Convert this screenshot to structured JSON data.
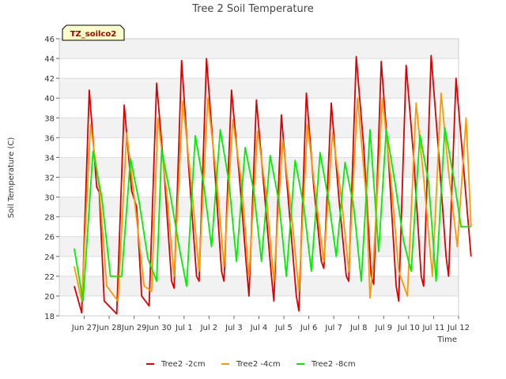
{
  "chart_data": {
    "type": "line",
    "title": "Tree 2 Soil Temperature",
    "xlabel": "Time",
    "ylabel": "Soil Temperature (C)",
    "ylim": [
      18,
      46
    ],
    "xlim": [
      0,
      16
    ],
    "yticks": [
      18,
      20,
      22,
      24,
      26,
      28,
      30,
      32,
      34,
      36,
      38,
      40,
      42,
      44,
      46
    ],
    "xticks": [
      "Jun 27",
      "Jun 28",
      "Jun 29",
      "Jun 30",
      "Jul 1",
      "Jul 2",
      "Jul 3",
      "Jul 4",
      "Jul 5",
      "Jul 6",
      "Jul 7",
      "Jul 8",
      "Jul 9",
      "Jul 10",
      "Jul 11",
      "Jul 12"
    ],
    "grid": "horizontal bands",
    "legend_position": "bottom",
    "annotation": "TZ_soilco2",
    "series": [
      {
        "name": "Tree2 -2cm",
        "color": "#dd0000",
        "x": [
          0.6,
          0.9,
          1.2,
          1.5,
          1.6,
          1.8,
          2.3,
          2.6,
          2.9,
          3.1,
          3.3,
          3.6,
          3.9,
          4.2,
          4.5,
          4.6,
          4.9,
          5.2,
          5.5,
          5.6,
          5.9,
          6.2,
          6.5,
          6.6,
          6.9,
          7.2,
          7.5,
          7.6,
          7.9,
          8.2,
          8.5,
          8.6,
          8.9,
          9.2,
          9.5,
          9.6,
          9.9,
          10.2,
          10.5,
          10.6,
          10.9,
          11.2,
          11.5,
          11.6,
          11.9,
          12.2,
          12.5,
          12.6,
          12.9,
          13.2,
          13.5,
          13.6,
          13.9,
          14.2,
          14.5,
          14.6,
          14.9,
          15.2,
          15.5,
          15.6,
          15.9,
          16.2,
          16.5
        ],
        "y": [
          21.0,
          18.3,
          40.8,
          31.0,
          30.5,
          19.5,
          18.2,
          39.3,
          30.6,
          29.0,
          20.0,
          19.0,
          41.5,
          32.5,
          21.5,
          20.8,
          43.8,
          32.5,
          22.0,
          21.5,
          44.0,
          33.8,
          22.5,
          21.5,
          40.8,
          32.5,
          23.0,
          20.0,
          39.8,
          31.0,
          22.0,
          19.5,
          38.3,
          29.0,
          20.0,
          18.5,
          40.5,
          31.0,
          23.5,
          22.8,
          39.5,
          30.0,
          22.0,
          21.5,
          44.2,
          35.0,
          22.0,
          21.2,
          43.7,
          33.5,
          21.0,
          19.5,
          43.3,
          34.0,
          22.0,
          21.0,
          44.3,
          34.5,
          24.0,
          22.0,
          42.0,
          33.0,
          24.0
        ]
      },
      {
        "name": "Tree2 -4cm",
        "color": "#ff9900",
        "x": [
          0.6,
          0.9,
          1.25,
          1.6,
          1.9,
          2.35,
          2.7,
          3.0,
          3.4,
          3.7,
          3.95,
          4.3,
          4.6,
          4.95,
          5.3,
          5.6,
          5.95,
          6.3,
          6.6,
          6.95,
          7.3,
          7.6,
          7.95,
          8.3,
          8.6,
          8.95,
          9.3,
          9.6,
          9.95,
          10.3,
          10.6,
          10.95,
          11.3,
          11.6,
          11.95,
          12.3,
          12.45,
          12.6,
          12.95,
          13.3,
          13.6,
          13.95,
          14.3,
          14.6,
          14.95,
          15.3,
          15.6,
          15.95,
          16.3,
          16.5
        ],
        "y": [
          23.0,
          19.5,
          37.3,
          31.0,
          21.0,
          19.5,
          36.5,
          30.0,
          21.0,
          20.5,
          38.0,
          30.5,
          22.0,
          39.7,
          31.0,
          22.5,
          40.0,
          32.0,
          23.0,
          37.8,
          31.5,
          22.0,
          36.7,
          30.0,
          21.5,
          35.8,
          28.5,
          20.5,
          37.3,
          29.5,
          23.5,
          36.5,
          30.0,
          22.5,
          40.0,
          30.0,
          19.8,
          24.0,
          40.0,
          31.5,
          22.5,
          20.0,
          39.5,
          32.0,
          22.0,
          40.5,
          32.5,
          25.0,
          38.0,
          27.0
        ]
      },
      {
        "name": "Tree2 -8cm",
        "color": "#00ee00",
        "x": [
          0.6,
          0.95,
          1.35,
          1.7,
          2.05,
          2.5,
          2.85,
          3.2,
          3.55,
          3.9,
          4.1,
          4.45,
          4.8,
          5.1,
          5.45,
          5.8,
          6.1,
          6.45,
          6.8,
          7.1,
          7.45,
          7.8,
          8.1,
          8.45,
          8.8,
          9.1,
          9.45,
          9.8,
          10.1,
          10.45,
          10.8,
          11.1,
          11.45,
          11.8,
          12.1,
          12.45,
          12.6,
          12.8,
          13.1,
          13.45,
          13.8,
          14.1,
          14.45,
          14.8,
          15.1,
          15.45,
          15.8,
          16.1,
          16.5
        ],
        "y": [
          24.8,
          19.5,
          34.6,
          30.0,
          22.0,
          22.0,
          33.9,
          29.5,
          23.8,
          21.5,
          34.8,
          30.2,
          25.0,
          21.0,
          36.2,
          31.0,
          25.0,
          36.8,
          31.5,
          23.5,
          35.0,
          30.5,
          23.5,
          34.2,
          29.5,
          22.0,
          33.7,
          29.0,
          22.5,
          34.5,
          29.5,
          24.0,
          33.5,
          29.0,
          21.5,
          36.8,
          31.5,
          24.5,
          36.8,
          31.5,
          25.5,
          22.5,
          36.3,
          31.5,
          21.5,
          37.0,
          32.0,
          27.0,
          27.0
        ]
      }
    ]
  }
}
